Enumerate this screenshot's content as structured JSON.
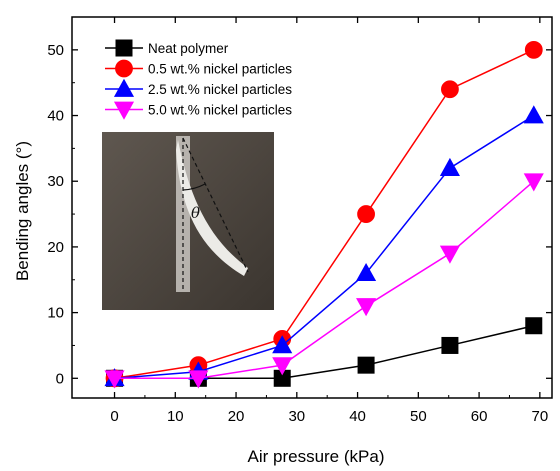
{
  "chart_data": {
    "type": "line",
    "xlabel": "Air pressure (kPa)",
    "ylabel": "Bending angles (°)",
    "xlim": [
      -7,
      72
    ],
    "ylim": [
      -3,
      55
    ],
    "xticks": [
      0,
      10,
      20,
      30,
      40,
      50,
      60,
      70
    ],
    "yticks": [
      0,
      10,
      20,
      30,
      40,
      50
    ],
    "grid": false,
    "legend_position": "top-left",
    "x": [
      0,
      13.8,
      27.6,
      41.4,
      55.2,
      69
    ],
    "series": [
      {
        "name": "Neat polymer",
        "color": "#000000",
        "marker": "square",
        "values": [
          0,
          0,
          0,
          2,
          5,
          8
        ]
      },
      {
        "name": "0.5 wt.% nickel particles",
        "color": "#ff0000",
        "marker": "circle",
        "values": [
          0,
          2,
          6,
          25,
          44,
          50
        ]
      },
      {
        "name": "2.5 wt.% nickel particles",
        "color": "#0000ff",
        "marker": "triangle-up",
        "values": [
          0,
          1,
          5,
          16,
          32,
          40
        ]
      },
      {
        "name": "5.0 wt.% nickel particles",
        "color": "#ff00ff",
        "marker": "triangle-down",
        "values": [
          0,
          0,
          2,
          11,
          19,
          30
        ]
      }
    ],
    "inset": {
      "label": "θ"
    }
  }
}
